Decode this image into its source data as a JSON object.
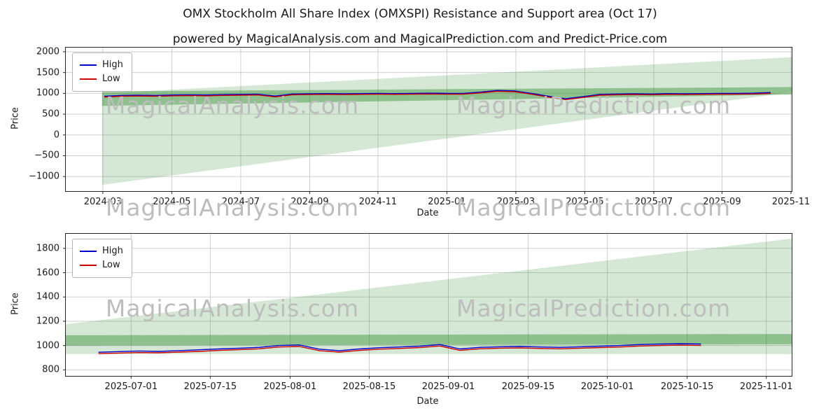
{
  "title": "OMX Stockholm All Share Index (OMXSPI) Resistance and Support area (Oct 17)",
  "subtitle": "powered by MagicalAnalysis.com and MagicalPrediction.com and Predict-Price.com",
  "watermarks": {
    "left": "MagicalAnalysis.com",
    "right": "MagicalPrediction.com"
  },
  "colors": {
    "high": "#0000cd",
    "low": "#cd0000",
    "area": "#2e8b2e",
    "grid": "#c9c9c9",
    "axis": "#262626",
    "watermark": "#bdbdbd"
  },
  "chart_data": [
    {
      "type": "line",
      "title": "",
      "xlabel": "Date",
      "ylabel": "Price",
      "grid": true,
      "legend_position": "upper left",
      "ylim": [
        -1350,
        2100
      ],
      "yticks": [
        {
          "v": -1000,
          "label": "−1000"
        },
        {
          "v": -500,
          "label": "−500"
        },
        {
          "v": 0,
          "label": "0"
        },
        {
          "v": 500,
          "label": "500"
        },
        {
          "v": 1000,
          "label": "1000"
        },
        {
          "v": 1500,
          "label": "1500"
        },
        {
          "v": 2000,
          "label": "2000"
        }
      ],
      "xticks": [
        {
          "pos": 0.051,
          "label": "2024-03"
        },
        {
          "pos": 0.146,
          "label": "2024-05"
        },
        {
          "pos": 0.241,
          "label": "2024-07"
        },
        {
          "pos": 0.336,
          "label": "2024-09"
        },
        {
          "pos": 0.43,
          "label": "2024-11"
        },
        {
          "pos": 0.525,
          "label": "2025-01"
        },
        {
          "pos": 0.62,
          "label": "2025-03"
        },
        {
          "pos": 0.715,
          "label": "2025-05"
        },
        {
          "pos": 0.81,
          "label": "2025-07"
        },
        {
          "pos": 0.904,
          "label": "2025-09"
        },
        {
          "pos": 0.999,
          "label": "2025-11"
        }
      ],
      "areas": [
        {
          "name": "support-resistance-wedge",
          "color": "#2e8b2e",
          "opacity": 0.2,
          "points": [
            [
              0.05,
              -1200
            ],
            [
              0.05,
              1000
            ],
            [
              1,
              1870
            ],
            [
              1,
              1030
            ]
          ]
        },
        {
          "name": "inner-band",
          "color": "#2e8b2e",
          "opacity": 0.42,
          "points": [
            [
              0.05,
              700
            ],
            [
              0.05,
              1050
            ],
            [
              1,
              1150
            ],
            [
              1,
              970
            ]
          ]
        }
      ],
      "series": [
        {
          "name": "High",
          "color": "#0000cd",
          "x0": 0.053,
          "x1": 0.971,
          "values": [
            930,
            950,
            955,
            950,
            960,
            965,
            960,
            970,
            975,
            980,
            935,
            985,
            990,
            995,
            990,
            995,
            1000,
            995,
            1000,
            1005,
            1000,
            1000,
            1030,
            1070,
            1060,
            1000,
            930,
            870,
            920,
            975,
            985,
            990,
            985,
            995,
            990,
            995,
            1000,
            1000,
            1005,
            1020
          ]
        },
        {
          "name": "Low",
          "color": "#cd0000",
          "x0": 0.053,
          "x1": 0.971,
          "values": [
            910,
            930,
            935,
            930,
            940,
            945,
            940,
            950,
            955,
            960,
            915,
            965,
            970,
            975,
            970,
            975,
            980,
            975,
            980,
            985,
            980,
            980,
            1010,
            1050,
            1040,
            980,
            910,
            850,
            900,
            955,
            965,
            970,
            965,
            975,
            970,
            975,
            980,
            980,
            985,
            1000
          ]
        }
      ]
    },
    {
      "type": "line",
      "title": "",
      "xlabel": "Date",
      "ylabel": "Price",
      "grid": true,
      "legend_position": "upper left",
      "ylim": [
        750,
        1920
      ],
      "yticks": [
        {
          "v": 800,
          "label": "800"
        },
        {
          "v": 1000,
          "label": "1000"
        },
        {
          "v": 1200,
          "label": "1200"
        },
        {
          "v": 1400,
          "label": "1400"
        },
        {
          "v": 1600,
          "label": "1600"
        },
        {
          "v": 1800,
          "label": "1800"
        }
      ],
      "xticks": [
        {
          "pos": 0.09,
          "label": "2025-07-01"
        },
        {
          "pos": 0.199,
          "label": "2025-07-15"
        },
        {
          "pos": 0.309,
          "label": "2025-08-01"
        },
        {
          "pos": 0.418,
          "label": "2025-08-15"
        },
        {
          "pos": 0.527,
          "label": "2025-09-01"
        },
        {
          "pos": 0.637,
          "label": "2025-09-15"
        },
        {
          "pos": 0.746,
          "label": "2025-10-01"
        },
        {
          "pos": 0.856,
          "label": "2025-10-15"
        },
        {
          "pos": 0.965,
          "label": "2025-11-01"
        }
      ],
      "areas": [
        {
          "name": "support-resistance-wedge",
          "color": "#2e8b2e",
          "opacity": 0.2,
          "points": [
            [
              0,
              930
            ],
            [
              0,
              1175
            ],
            [
              1,
              1880
            ],
            [
              1,
              930
            ]
          ]
        },
        {
          "name": "inner-band",
          "color": "#2e8b2e",
          "opacity": 0.42,
          "points": [
            [
              0,
              1000
            ],
            [
              0,
              1085
            ],
            [
              1,
              1095
            ],
            [
              1,
              1010
            ]
          ]
        }
      ],
      "series": [
        {
          "name": "High",
          "color": "#0000cd",
          "x0": 0.045,
          "x1": 0.875,
          "values": [
            945,
            950,
            955,
            952,
            958,
            965,
            972,
            978,
            985,
            1000,
            1005,
            970,
            958,
            972,
            982,
            988,
            995,
            1008,
            972,
            985,
            990,
            992,
            988,
            985,
            990,
            995,
            1000,
            1008,
            1012,
            1015,
            1012
          ]
        },
        {
          "name": "Low",
          "color": "#cd0000",
          "x0": 0.045,
          "x1": 0.875,
          "values": [
            933,
            938,
            942,
            940,
            946,
            952,
            960,
            966,
            973,
            988,
            992,
            958,
            946,
            960,
            970,
            976,
            983,
            996,
            960,
            973,
            978,
            980,
            976,
            973,
            978,
            983,
            988,
            996,
            1000,
            1003,
            1000
          ]
        }
      ]
    }
  ]
}
